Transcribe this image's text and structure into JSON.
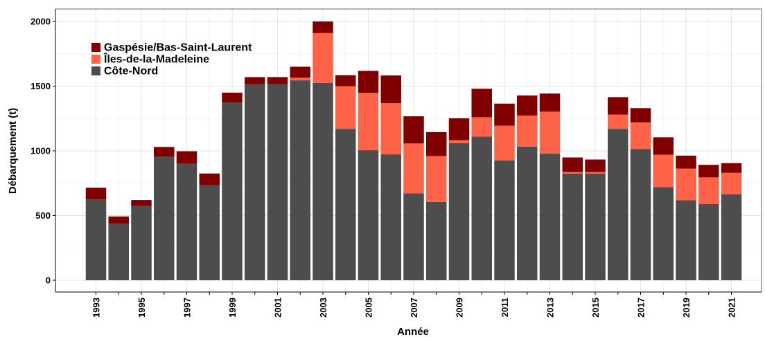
{
  "chart_data": {
    "type": "bar",
    "stacked": true,
    "xlabel": "Année",
    "ylabel": "Débarquement (t)",
    "ylim": [
      0,
      2050
    ],
    "yticks": [
      0,
      500,
      1000,
      1500,
      2000
    ],
    "xtick_labels": [
      "1993",
      "1995",
      "1997",
      "1999",
      "2001",
      "2003",
      "2005",
      "2007",
      "2009",
      "2011",
      "2013",
      "2015",
      "2017",
      "2019",
      "2021"
    ],
    "grid": true,
    "legend_position": "top-left",
    "categories": [
      "1993",
      "1994",
      "1995",
      "1996",
      "1997",
      "1998",
      "1999",
      "2000",
      "2001",
      "2002",
      "2003",
      "2004",
      "2005",
      "2006",
      "2007",
      "2008",
      "2009",
      "2010",
      "2011",
      "2012",
      "2013",
      "2014",
      "2015",
      "2016",
      "2017",
      "2018",
      "2019",
      "2020",
      "2021"
    ],
    "series": [
      {
        "name": "Côte-Nord",
        "color": "#4d4d4d",
        "values": [
          625,
          438,
          573,
          955,
          900,
          735,
          1373,
          1515,
          1515,
          1545,
          1525,
          1170,
          1005,
          973,
          672,
          605,
          1060,
          1110,
          925,
          1033,
          978,
          825,
          825,
          1170,
          1015,
          720,
          618,
          590,
          665
        ]
      },
      {
        "name": "Îles-de-la-Madeleine",
        "color": "#ff6347",
        "values": [
          0,
          0,
          0,
          0,
          0,
          0,
          0,
          0,
          0,
          20,
          385,
          330,
          443,
          395,
          385,
          355,
          22,
          150,
          270,
          240,
          325,
          12,
          12,
          110,
          205,
          250,
          245,
          205,
          165
        ]
      },
      {
        "name": "Gaspésie/Bas-Saint-Laurent",
        "color": "#800000",
        "values": [
          90,
          55,
          47,
          75,
          97,
          90,
          77,
          55,
          55,
          85,
          90,
          85,
          170,
          215,
          210,
          185,
          170,
          220,
          170,
          155,
          140,
          112,
          96,
          135,
          110,
          135,
          100,
          97,
          75
        ]
      }
    ],
    "legend_order": [
      "Gaspésie/Bas-Saint-Laurent",
      "Îles-de-la-Madeleine",
      "Côte-Nord"
    ]
  }
}
